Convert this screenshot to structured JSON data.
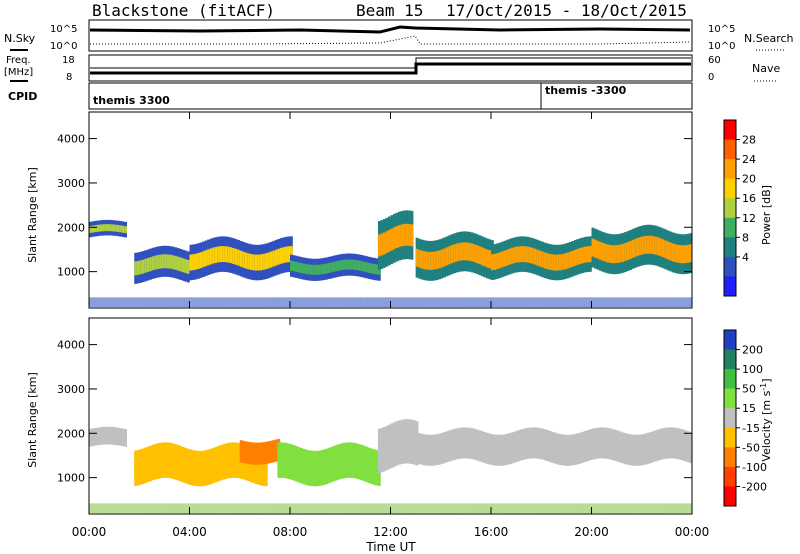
{
  "header": {
    "title": "Blackstone (fitACF)",
    "beam": "Beam 15",
    "date_range": "17/Oct/2015 - 18/Oct/2015"
  },
  "top_panels": {
    "nsky_label": "N.Sky",
    "nsearch_label": "N.Search",
    "noise_tick_high": "10^5",
    "noise_tick_low": "10^0",
    "freq_label_line1": "Freq.",
    "freq_label_line2": "[MHz]",
    "freq_ticks": [
      "18",
      "8"
    ],
    "nave_label": "Nave",
    "nave_ticks": [
      "60",
      "0"
    ],
    "cpid_label": "CPID",
    "cpid_segments": [
      {
        "name": "themis 3300",
        "start_hour": 0
      },
      {
        "name": "themis -3300",
        "start_hour": 18
      }
    ]
  },
  "colorbars": {
    "power": {
      "label": "Power [dB]",
      "ticks": [
        "28",
        "24",
        "20",
        "16",
        "12",
        "8",
        "4"
      ],
      "colors": [
        "#ff0000",
        "#ff6000",
        "#ffa000",
        "#ffd000",
        "#b0d040",
        "#40b060",
        "#208080",
        "#3050c0",
        "#2020ff"
      ]
    },
    "velocity": {
      "label": "Velocity [m s",
      "label_sup": "-1",
      "label_end": "]",
      "ticks": [
        "200",
        "100",
        "50",
        "15",
        "-15",
        "-50",
        "-100",
        "-200"
      ],
      "colors": [
        "#2040c0",
        "#208060",
        "#40c040",
        "#80e040",
        "#c0c0c0",
        "#ffc000",
        "#ff8000",
        "#ff4000",
        "#ff0000"
      ]
    }
  },
  "x_axis": {
    "label": "Time UT",
    "ticks": [
      "00:00",
      "04:00",
      "08:00",
      "12:00",
      "16:00",
      "20:00",
      "00:00"
    ]
  },
  "chart_data": [
    {
      "type": "heatmap",
      "title": "Power",
      "ylabel": "Slant Range [km]",
      "xlabel": "",
      "y_ticks": [
        1000,
        2000,
        3000,
        4000
      ],
      "x_range_hours": [
        0,
        24
      ],
      "ylim_km": [
        180,
        4600
      ],
      "scale": [
        0,
        30
      ],
      "bands": [
        {
          "t_start": 0.0,
          "t_end": 1.5,
          "range_center": 1950,
          "range_width": 350,
          "value": 14
        },
        {
          "t_start": 1.8,
          "t_end": 4.0,
          "range_center": 1150,
          "range_width": 700,
          "value": 14
        },
        {
          "t_start": 4.0,
          "t_end": 8.0,
          "range_center": 1300,
          "range_width": 800,
          "value": 18
        },
        {
          "t_start": 8.0,
          "t_end": 11.5,
          "range_center": 1100,
          "range_width": 500,
          "value": 13
        },
        {
          "t_start": 11.5,
          "t_end": 12.8,
          "range_center": 1700,
          "range_width": 1100,
          "value": 20
        },
        {
          "t_start": 13.0,
          "t_end": 16.0,
          "range_center": 1350,
          "range_width": 900,
          "value": 22
        },
        {
          "t_start": 16.0,
          "t_end": 20.0,
          "range_center": 1300,
          "range_width": 800,
          "value": 20
        },
        {
          "t_start": 20.0,
          "t_end": 24.0,
          "range_center": 1500,
          "range_width": 900,
          "value": 20
        }
      ]
    },
    {
      "type": "heatmap",
      "title": "Velocity",
      "ylabel": "Slant Range [km]",
      "xlabel": "Time UT",
      "y_ticks": [
        1000,
        2000,
        3000,
        4000
      ],
      "x_range_hours": [
        0,
        24
      ],
      "ylim_km": [
        180,
        4600
      ],
      "scale": [
        -250,
        250
      ],
      "bands": [
        {
          "t_start": 0.0,
          "t_end": 1.5,
          "range_center": 1900,
          "range_width": 400,
          "value": 0
        },
        {
          "t_start": 1.8,
          "t_end": 7.0,
          "range_center": 1300,
          "range_width": 800,
          "value": -40
        },
        {
          "t_start": 6.0,
          "t_end": 7.5,
          "range_center": 1600,
          "range_width": 500,
          "value": -110
        },
        {
          "t_start": 7.5,
          "t_end": 11.5,
          "range_center": 1300,
          "range_width": 800,
          "value": 40
        },
        {
          "t_start": 11.5,
          "t_end": 13.0,
          "range_center": 1700,
          "range_width": 1000,
          "value": 0
        },
        {
          "t_start": 13.0,
          "t_end": 24.0,
          "range_center": 1700,
          "range_width": 700,
          "value": 0
        }
      ]
    }
  ]
}
